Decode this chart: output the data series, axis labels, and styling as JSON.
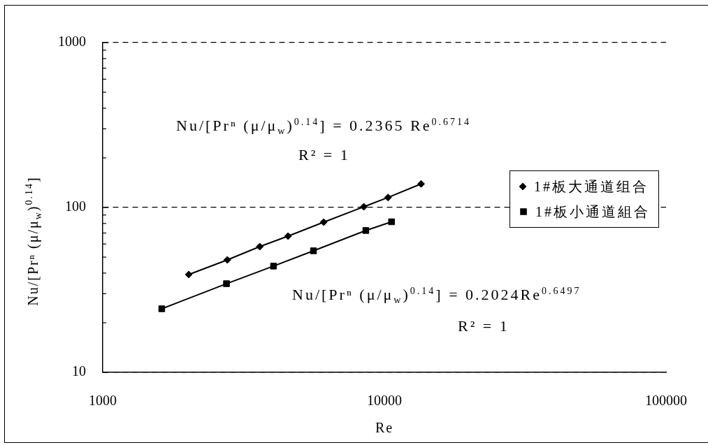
{
  "chart_data": {
    "type": "line",
    "xlabel": "Re",
    "ylabel": "Nu/[Prⁿ (μ/μ$_{w}$)$^{0.14}$]",
    "log": "xy",
    "xlim": [
      1000,
      100000
    ],
    "xticks": [
      1000,
      10000,
      100000
    ],
    "ylim": [
      10,
      1000
    ],
    "yticks": [
      10,
      {
        "value": 20,
        "label": null
      },
      {
        "value": 30,
        "label": null
      },
      {
        "value": 40,
        "label": null
      },
      {
        "value": 50,
        "label": null
      },
      {
        "value": 60,
        "label": null
      },
      {
        "value": 70,
        "label": null
      },
      {
        "value": 80,
        "label": null
      },
      {
        "value": 90,
        "label": null
      },
      100,
      {
        "value": 200,
        "label": null
      },
      {
        "value": 300,
        "label": null
      },
      {
        "value": 400,
        "label": null
      },
      {
        "value": 500,
        "label": null
      },
      {
        "value": 600,
        "label": null
      },
      {
        "value": 700,
        "label": null
      },
      {
        "value": 800,
        "label": null
      },
      {
        "value": 900,
        "label": null
      },
      1000
    ],
    "grid": "y",
    "legend": "right",
    "series": [
      {
        "name": "1#板大通道组合",
        "color": "#000000",
        "marker": "diamond",
        "x": [
          2020,
          2770,
          3610,
          4550,
          6090,
          8450,
          10300,
          13500
        ],
        "values": [
          39.2,
          48.1,
          57.9,
          67,
          81.5,
          101,
          115,
          139
        ]
      },
      {
        "name": "1#板小通道組合",
        "color": "#000000",
        "marker": "square",
        "x": [
          1620,
          2750,
          4040,
          5600,
          8590,
          10600
        ],
        "values": [
          24.3,
          34.5,
          44.1,
          54.6,
          72.5,
          81.9
        ]
      }
    ],
    "annotations": [
      "Nu/[Prⁿ (μ/μ$_{w}$)$^{0.14}$] = 0.2365 Re$^{0.6714}$",
      "R² = 1",
      "Nu/[Prⁿ (μ/μ$_{w}$)$^{0.14}$] = 0.2024Re$^{0.6497}$",
      "R² = 1"
    ]
  }
}
